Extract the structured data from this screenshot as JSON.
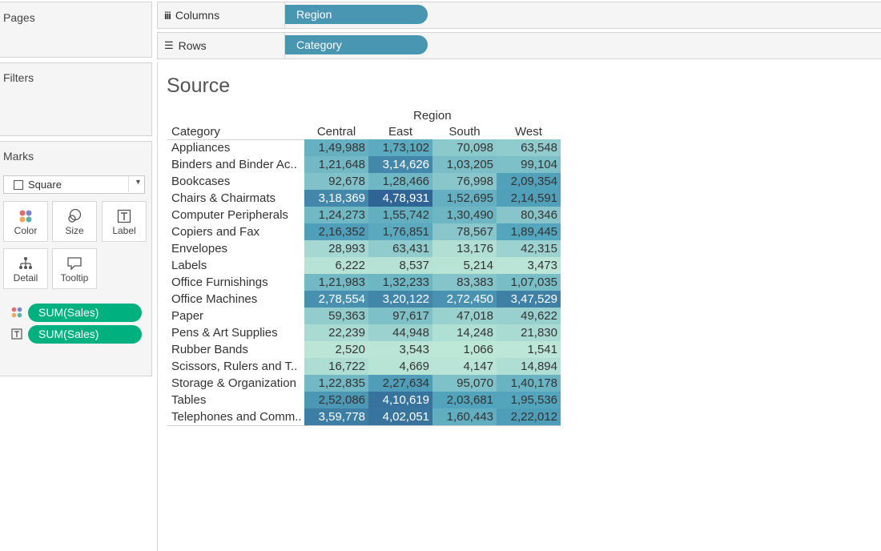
{
  "left_panels": {
    "pages_title": "Pages",
    "filters_title": "Filters",
    "marks_title": "Marks",
    "mark_type": "Square",
    "mark_buttons": [
      "Color",
      "Size",
      "Label",
      "Detail",
      "Tooltip"
    ],
    "mark_fields": [
      {
        "icon": "color-icon",
        "label": "SUM(Sales)"
      },
      {
        "icon": "label-icon",
        "label": "SUM(Sales)"
      }
    ]
  },
  "shelves": {
    "columns_label": "Columns",
    "columns_pill": "Region",
    "rows_label": "Rows",
    "rows_pill": "Category"
  },
  "view": {
    "title": "Source",
    "column_header_group": "Region",
    "row_header": "Category",
    "columns": [
      "Central",
      "East",
      "South",
      "West"
    ],
    "categories": [
      "Appliances",
      "Binders and Binder Ac..",
      "Bookcases",
      "Chairs & Chairmats",
      "Computer Peripherals",
      "Copiers and Fax",
      "Envelopes",
      "Labels",
      "Office Furnishings",
      "Office Machines",
      "Paper",
      "Pens & Art Supplies",
      "Rubber Bands",
      "Scissors, Rulers and T..",
      "Storage & Organization",
      "Tables",
      "Telephones and Comm.."
    ],
    "values": [
      [
        "1,49,988",
        "1,73,102",
        "70,098",
        "63,548"
      ],
      [
        "1,21,648",
        "3,14,626",
        "1,03,205",
        "99,104"
      ],
      [
        "92,678",
        "1,28,466",
        "76,998",
        "2,09,354"
      ],
      [
        "3,18,369",
        "4,78,931",
        "1,52,695",
        "2,14,591"
      ],
      [
        "1,24,273",
        "1,55,742",
        "1,30,490",
        "80,346"
      ],
      [
        "2,16,352",
        "1,76,851",
        "78,567",
        "1,89,445"
      ],
      [
        "28,993",
        "63,431",
        "13,176",
        "42,315"
      ],
      [
        "6,222",
        "8,537",
        "5,214",
        "3,473"
      ],
      [
        "1,21,983",
        "1,32,233",
        "83,383",
        "1,07,035"
      ],
      [
        "2,78,554",
        "3,20,122",
        "2,72,450",
        "3,47,529"
      ],
      [
        "59,363",
        "97,617",
        "47,018",
        "49,622"
      ],
      [
        "22,239",
        "44,948",
        "14,248",
        "21,830"
      ],
      [
        "2,520",
        "3,543",
        "1,066",
        "1,541"
      ],
      [
        "16,722",
        "4,669",
        "4,147",
        "14,894"
      ],
      [
        "1,22,835",
        "2,27,634",
        "95,070",
        "1,40,178"
      ],
      [
        "2,52,086",
        "4,10,619",
        "2,03,681",
        "1,95,536"
      ],
      [
        "3,59,778",
        "4,02,051",
        "1,60,443",
        "2,22,012"
      ]
    ]
  },
  "colors": {
    "pill_blue": "#4996b2",
    "pill_green": "#00b180",
    "heat_low": "#bfe8d8",
    "heat_high": "#2f6594"
  }
}
